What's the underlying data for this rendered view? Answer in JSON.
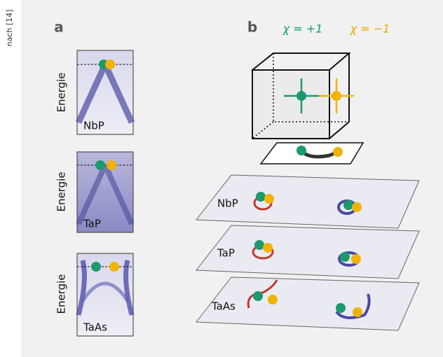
{
  "side_label": "nach [14]",
  "panel_a": {
    "label": "a",
    "axis_label": "Energie",
    "spectra": [
      "NbP",
      "TaP",
      "TaAs"
    ]
  },
  "panel_b": {
    "label": "b",
    "chirality": {
      "positive": "χ = +1",
      "negative": "χ = −1"
    },
    "planes": [
      "NbP",
      "TaP",
      "TaAs"
    ]
  }
}
